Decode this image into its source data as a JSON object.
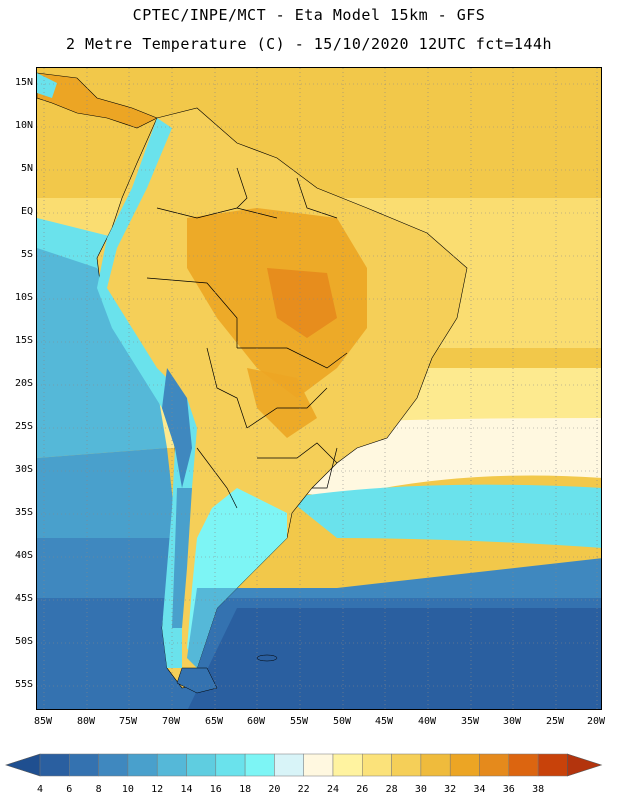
{
  "header": {
    "title": "CPTEC/INPE/MCT -  Eta Model 15km - GFS",
    "subtitle": "2 Metre Temperature (C) - 15/10/2020 12UTC fct=144h"
  },
  "map": {
    "lat_labels": [
      "15N",
      "10N",
      "5N",
      "EQ",
      "5S",
      "10S",
      "15S",
      "20S",
      "25S",
      "30S",
      "35S",
      "40S",
      "45S",
      "50S",
      "55S"
    ],
    "lon_labels": [
      "85W",
      "80W",
      "75W",
      "70W",
      "65W",
      "60W",
      "55W",
      "50W",
      "45W",
      "40W",
      "35W",
      "30W",
      "25W",
      "20W"
    ],
    "grid": true
  },
  "colorbar": {
    "labels": [
      "4",
      "6",
      "8",
      "10",
      "12",
      "14",
      "16",
      "18",
      "20",
      "22",
      "24",
      "26",
      "28",
      "30",
      "32",
      "34",
      "36",
      "38"
    ],
    "colors": [
      "#2a5fa0",
      "#3472b0",
      "#3f88bf",
      "#49a0cc",
      "#55b8d8",
      "#5fcde0",
      "#6ae2ec",
      "#7df5f5",
      "#d8f4f8",
      "#fff8e0",
      "#fff3a0",
      "#fbe27a",
      "#f5cf58",
      "#efbb3c",
      "#eca524",
      "#e58a1c",
      "#dc6510",
      "#c8420a",
      "#b3340d"
    ],
    "left_arrow_color": "#1f4f90",
    "right_arrow_color": "#b3340d"
  }
}
